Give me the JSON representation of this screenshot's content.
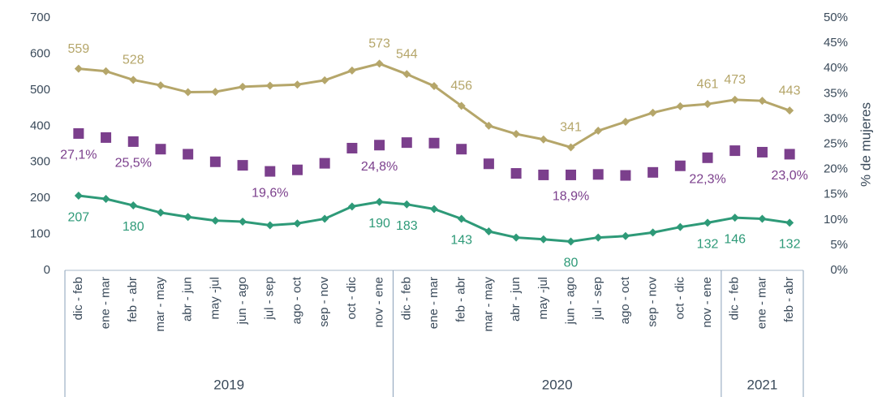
{
  "chart_data": {
    "type": "line",
    "categories": [
      "dic - feb",
      "ene - mar",
      "feb - abr",
      "mar - may",
      "abr - jun",
      "may -jul",
      "jun - ago",
      "jul - sep",
      "ago - oct",
      "sep - nov",
      "oct - dic",
      "nov - ene",
      "dic - feb",
      "ene - mar",
      "feb - abr",
      "mar - may",
      "abr - jun",
      "may -jul",
      "jun - ago",
      "jul - sep",
      "ago - oct",
      "sep - nov",
      "oct - dic",
      "nov - ene",
      "dic - feb",
      "ene - mar",
      "feb - abr"
    ],
    "groups": [
      {
        "label": "2019",
        "size": 12
      },
      {
        "label": "2020",
        "size": 12
      },
      {
        "label": "2021",
        "size": 3
      }
    ],
    "ylim": [
      0,
      700
    ],
    "yticks": [
      0,
      100,
      200,
      300,
      400,
      500,
      600,
      700
    ],
    "y2lim": [
      0,
      50
    ],
    "y2label": "% de mujeres",
    "y2ticks": [
      {
        "value": 0,
        "label": "0%"
      },
      {
        "value": 5,
        "label": "5%"
      },
      {
        "value": 10,
        "label": "10%"
      },
      {
        "value": 15,
        "label": "15%"
      },
      {
        "value": 20,
        "label": "20%"
      },
      {
        "value": 25,
        "label": "25%"
      },
      {
        "value": 30,
        "label": "30%"
      },
      {
        "value": 35,
        "label": "35%"
      },
      {
        "value": 40,
        "label": "40%"
      },
      {
        "value": 45,
        "label": "45%"
      },
      {
        "value": 50,
        "label": "50%"
      }
    ],
    "series": [
      {
        "color": "#b5a66a",
        "marker": "diamond",
        "label_side": "above",
        "values": [
          559,
          552,
          528,
          513,
          494,
          495,
          509,
          512,
          515,
          527,
          554,
          573,
          544,
          511,
          456,
          401,
          378,
          363,
          341,
          387,
          412,
          437,
          455,
          461,
          473,
          470,
          443
        ],
        "value_labels": [
          "559",
          null,
          "528",
          null,
          null,
          null,
          null,
          null,
          null,
          null,
          null,
          "573",
          "544",
          null,
          "456",
          null,
          null,
          null,
          "341",
          null,
          null,
          null,
          null,
          "461",
          "473",
          null,
          "443"
        ]
      },
      {
        "color": "#7b3f8c",
        "marker": "square",
        "axis": "y2",
        "line": false,
        "label_side": "below",
        "values": [
          27.1,
          26.3,
          25.5,
          24.0,
          23.0,
          21.5,
          20.8,
          19.6,
          19.9,
          21.2,
          24.2,
          24.8,
          25.3,
          25.2,
          24.0,
          21.1,
          19.2,
          18.9,
          18.9,
          19.0,
          18.8,
          19.4,
          20.7,
          22.3,
          23.7,
          23.4,
          23.0
        ],
        "value_labels": [
          "27,1%",
          null,
          "25,5%",
          null,
          null,
          null,
          null,
          "19,6%",
          null,
          null,
          null,
          "24,8%",
          null,
          null,
          null,
          null,
          null,
          null,
          "18,9%",
          null,
          null,
          null,
          null,
          "22,3%",
          null,
          null,
          "23,0%"
        ]
      },
      {
        "color": "#2e9a78",
        "marker": "diamond",
        "label_side": "below",
        "values": [
          207,
          198,
          180,
          160,
          148,
          138,
          135,
          125,
          130,
          143,
          177,
          190,
          183,
          170,
          143,
          108,
          91,
          86,
          80,
          91,
          95,
          105,
          120,
          132,
          146,
          143,
          132
        ],
        "value_labels": [
          "207",
          null,
          "180",
          null,
          null,
          null,
          null,
          null,
          null,
          null,
          null,
          "190",
          "183",
          null,
          "143",
          null,
          null,
          null,
          "80",
          null,
          null,
          null,
          null,
          "132",
          "146",
          null,
          "132"
        ]
      }
    ]
  }
}
